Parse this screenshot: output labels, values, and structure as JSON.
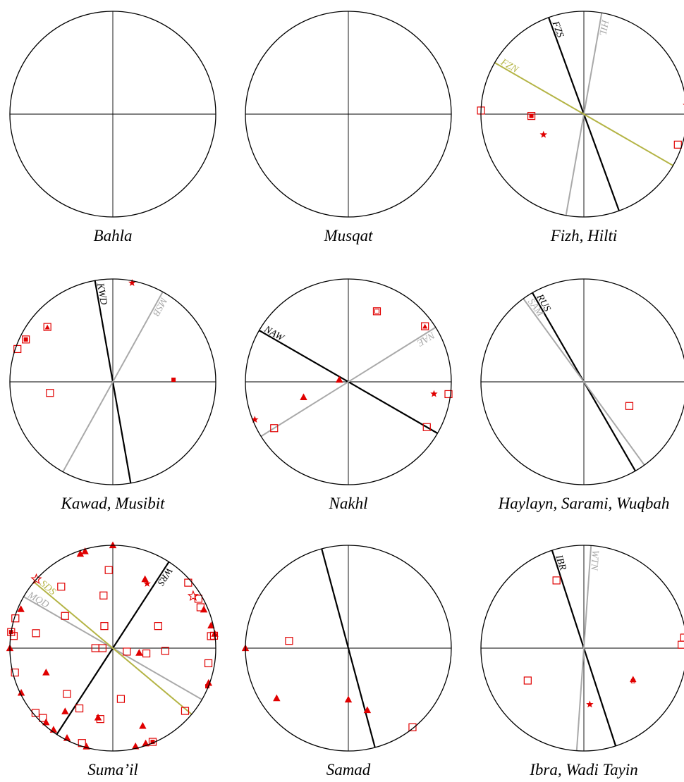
{
  "colors": {
    "circle": "#000000",
    "axes": "#000000",
    "fault_black": "#000000",
    "fault_gray": "#a9a9a9",
    "fault_olive": "#b4b445",
    "symbols": "#e00000",
    "caption": "#000000"
  },
  "panels": [
    {
      "caption": "Bahla",
      "faults": [],
      "symbols": []
    },
    {
      "caption": "Musqat",
      "faults": [],
      "symbols": []
    },
    {
      "caption": "Fizh, Hilti",
      "faults": [
        {
          "label": "FZS",
          "strike": 340,
          "color": "black"
        },
        {
          "label": "HIL",
          "strike": 10,
          "color": "gray"
        },
        {
          "label": "FZN",
          "strike": 300,
          "color": "olive"
        }
      ],
      "symbols": [
        {
          "type": "square",
          "az": 272,
          "r": 1.0
        },
        {
          "type": "square-filled",
          "az": 268,
          "r": 0.51
        },
        {
          "type": "star",
          "az": 243,
          "r": 0.44
        },
        {
          "type": "star",
          "az": 85,
          "r": 1.0
        },
        {
          "type": "square",
          "az": 108,
          "r": 0.96
        }
      ]
    },
    {
      "caption": "Kawad, Musibit",
      "faults": [
        {
          "label": "KWD",
          "strike": 350,
          "color": "black"
        },
        {
          "label": "MSB",
          "strike": 29,
          "color": "gray"
        }
      ],
      "symbols": [
        {
          "type": "star",
          "az": 11,
          "r": 0.98
        },
        {
          "type": "square-filled",
          "az": 296,
          "r": 0.94
        },
        {
          "type": "square",
          "az": 289,
          "r": 0.98
        },
        {
          "type": "triangle-square",
          "az": 310,
          "r": 0.83
        },
        {
          "type": "square",
          "az": 260,
          "r": 0.62
        },
        {
          "type": "small-square",
          "az": 88,
          "r": 0.59
        }
      ]
    },
    {
      "caption": "Nakhl",
      "faults": [
        {
          "label": "NAW",
          "strike": 300,
          "color": "black"
        },
        {
          "label": "NAE",
          "strike": 58,
          "color": "gray"
        }
      ],
      "symbols": [
        {
          "type": "square-dot",
          "az": 22,
          "r": 0.74
        },
        {
          "type": "triangle-square",
          "az": 54,
          "r": 0.92
        },
        {
          "type": "triangle",
          "az": 283,
          "r": 0.09
        },
        {
          "type": "triangle",
          "az": 251,
          "r": 0.46
        },
        {
          "type": "star",
          "az": 248,
          "r": 0.98
        },
        {
          "type": "square",
          "az": 238,
          "r": 0.85
        },
        {
          "type": "star",
          "az": 98,
          "r": 0.84
        },
        {
          "type": "square",
          "az": 97,
          "r": 0.98
        },
        {
          "type": "square",
          "az": 120,
          "r": 0.88
        }
      ]
    },
    {
      "caption": "Haylayn, Sarami, Wuqbah",
      "faults": [
        {
          "label": "RUS",
          "strike": 330,
          "color": "black"
        },
        {
          "label": "SAM",
          "strike": 324,
          "color": "gray"
        }
      ],
      "symbols": [
        {
          "type": "square",
          "az": 118,
          "r": 0.5
        }
      ]
    },
    {
      "caption": "Suma’il",
      "faults": [
        {
          "label": "WRS",
          "strike": 33,
          "color": "black"
        },
        {
          "label": "MQD",
          "strike": 300,
          "color": "gray"
        },
        {
          "label": "SDS",
          "strike": 310,
          "color": "olive"
        }
      ],
      "symbols": [
        {
          "type": "triangle",
          "az": 0,
          "r": 1.0
        },
        {
          "type": "triangle",
          "az": 344,
          "r": 0.98
        },
        {
          "type": "triangle",
          "az": 341,
          "r": 0.97
        },
        {
          "type": "square",
          "az": 357,
          "r": 0.76
        },
        {
          "type": "triangle",
          "az": 25,
          "r": 0.74
        },
        {
          "type": "star",
          "az": 28,
          "r": 0.71
        },
        {
          "type": "square",
          "az": 49,
          "r": 0.97
        },
        {
          "type": "star-outline",
          "az": 57,
          "r": 0.93
        },
        {
          "type": "square",
          "az": 60,
          "r": 0.96
        },
        {
          "type": "square",
          "az": 65,
          "r": 0.94
        },
        {
          "type": "triangle",
          "az": 67,
          "r": 0.96
        },
        {
          "type": "triangle",
          "az": 77,
          "r": 0.98
        },
        {
          "type": "square",
          "az": 83,
          "r": 0.96
        },
        {
          "type": "square",
          "az": 83,
          "r": 0.99
        },
        {
          "type": "triangle",
          "az": 82,
          "r": 1.0
        },
        {
          "type": "star-outline",
          "az": 312,
          "r": 1.0
        },
        {
          "type": "square",
          "az": 320,
          "r": 0.78
        },
        {
          "type": "square",
          "az": 350,
          "r": 0.52
        },
        {
          "type": "square",
          "az": 287,
          "r": 0.99
        },
        {
          "type": "triangle",
          "az": 293,
          "r": 0.97
        },
        {
          "type": "square-filled",
          "az": 279,
          "r": 1.0
        },
        {
          "type": "square",
          "az": 277,
          "r": 0.97
        },
        {
          "type": "square",
          "az": 281,
          "r": 0.76
        },
        {
          "type": "triangle",
          "az": 270,
          "r": 1.0
        },
        {
          "type": "square",
          "az": 304,
          "r": 0.56
        },
        {
          "type": "square",
          "az": 339,
          "r": 0.23
        },
        {
          "type": "square",
          "az": 270,
          "r": 0.17
        },
        {
          "type": "square",
          "az": 270,
          "r": 0.1
        },
        {
          "type": "square",
          "az": 104,
          "r": 0.14
        },
        {
          "type": "triangle",
          "az": 100,
          "r": 0.26
        },
        {
          "type": "square",
          "az": 99,
          "r": 0.33
        },
        {
          "type": "square",
          "az": 64,
          "r": 0.49
        },
        {
          "type": "square",
          "az": 93,
          "r": 0.51
        },
        {
          "type": "square",
          "az": 99,
          "r": 0.94
        },
        {
          "type": "small-square",
          "az": 112,
          "r": 0.99
        },
        {
          "type": "triangle",
          "az": 110,
          "r": 0.99
        },
        {
          "type": "square",
          "az": 131,
          "r": 0.93
        },
        {
          "type": "square",
          "az": 171,
          "r": 0.5
        },
        {
          "type": "triangle",
          "az": 192,
          "r": 0.69
        },
        {
          "type": "square",
          "az": 190,
          "r": 0.7
        },
        {
          "type": "triangle",
          "az": 167,
          "r": 0.98
        },
        {
          "type": "triangle",
          "az": 161,
          "r": 0.98
        },
        {
          "type": "square-filled",
          "az": 157,
          "r": 0.99
        },
        {
          "type": "triangle",
          "az": 159,
          "r": 0.81
        },
        {
          "type": "triangle",
          "az": 217,
          "r": 0.77
        },
        {
          "type": "square",
          "az": 209,
          "r": 0.67
        },
        {
          "type": "triangle",
          "az": 195,
          "r": 0.99
        },
        {
          "type": "square",
          "az": 198,
          "r": 0.97
        },
        {
          "type": "triangle",
          "az": 207,
          "r": 0.98
        },
        {
          "type": "triangle",
          "az": 216,
          "r": 0.98
        },
        {
          "type": "triangle",
          "az": 222,
          "r": 0.97
        },
        {
          "type": "square",
          "az": 225,
          "r": 0.96
        },
        {
          "type": "square",
          "az": 230,
          "r": 0.98
        },
        {
          "type": "triangle",
          "az": 244,
          "r": 0.99
        },
        {
          "type": "triangle",
          "az": 250,
          "r": 0.69
        },
        {
          "type": "square",
          "az": 256,
          "r": 0.98
        },
        {
          "type": "square",
          "az": 225,
          "r": 0.63
        }
      ]
    },
    {
      "caption": "Samad",
      "faults": [
        {
          "label": "",
          "strike": 345,
          "color": "black"
        }
      ],
      "symbols": [
        {
          "type": "triangle",
          "az": 270,
          "r": 1.0
        },
        {
          "type": "square",
          "az": 277,
          "r": 0.58
        },
        {
          "type": "triangle",
          "az": 235,
          "r": 0.85
        },
        {
          "type": "triangle",
          "az": 180,
          "r": 0.5
        },
        {
          "type": "triangle",
          "az": 163,
          "r": 0.63
        },
        {
          "type": "square",
          "az": 141,
          "r": 0.99
        }
      ]
    },
    {
      "caption": "Ibra, Wadi Tayin",
      "faults": [
        {
          "label": "IBR",
          "strike": 342,
          "color": "black"
        },
        {
          "label": "WTN",
          "strike": 4,
          "color": "gray"
        }
      ],
      "symbols": [
        {
          "type": "square",
          "az": 338,
          "r": 0.71
        },
        {
          "type": "square",
          "az": 84,
          "r": 0.98
        },
        {
          "type": "square",
          "az": 88,
          "r": 0.95
        },
        {
          "type": "triangle-filled-square",
          "az": 123,
          "r": 0.57
        },
        {
          "type": "star",
          "az": 174,
          "r": 0.55
        },
        {
          "type": "square",
          "az": 240,
          "r": 0.63
        }
      ]
    }
  ]
}
